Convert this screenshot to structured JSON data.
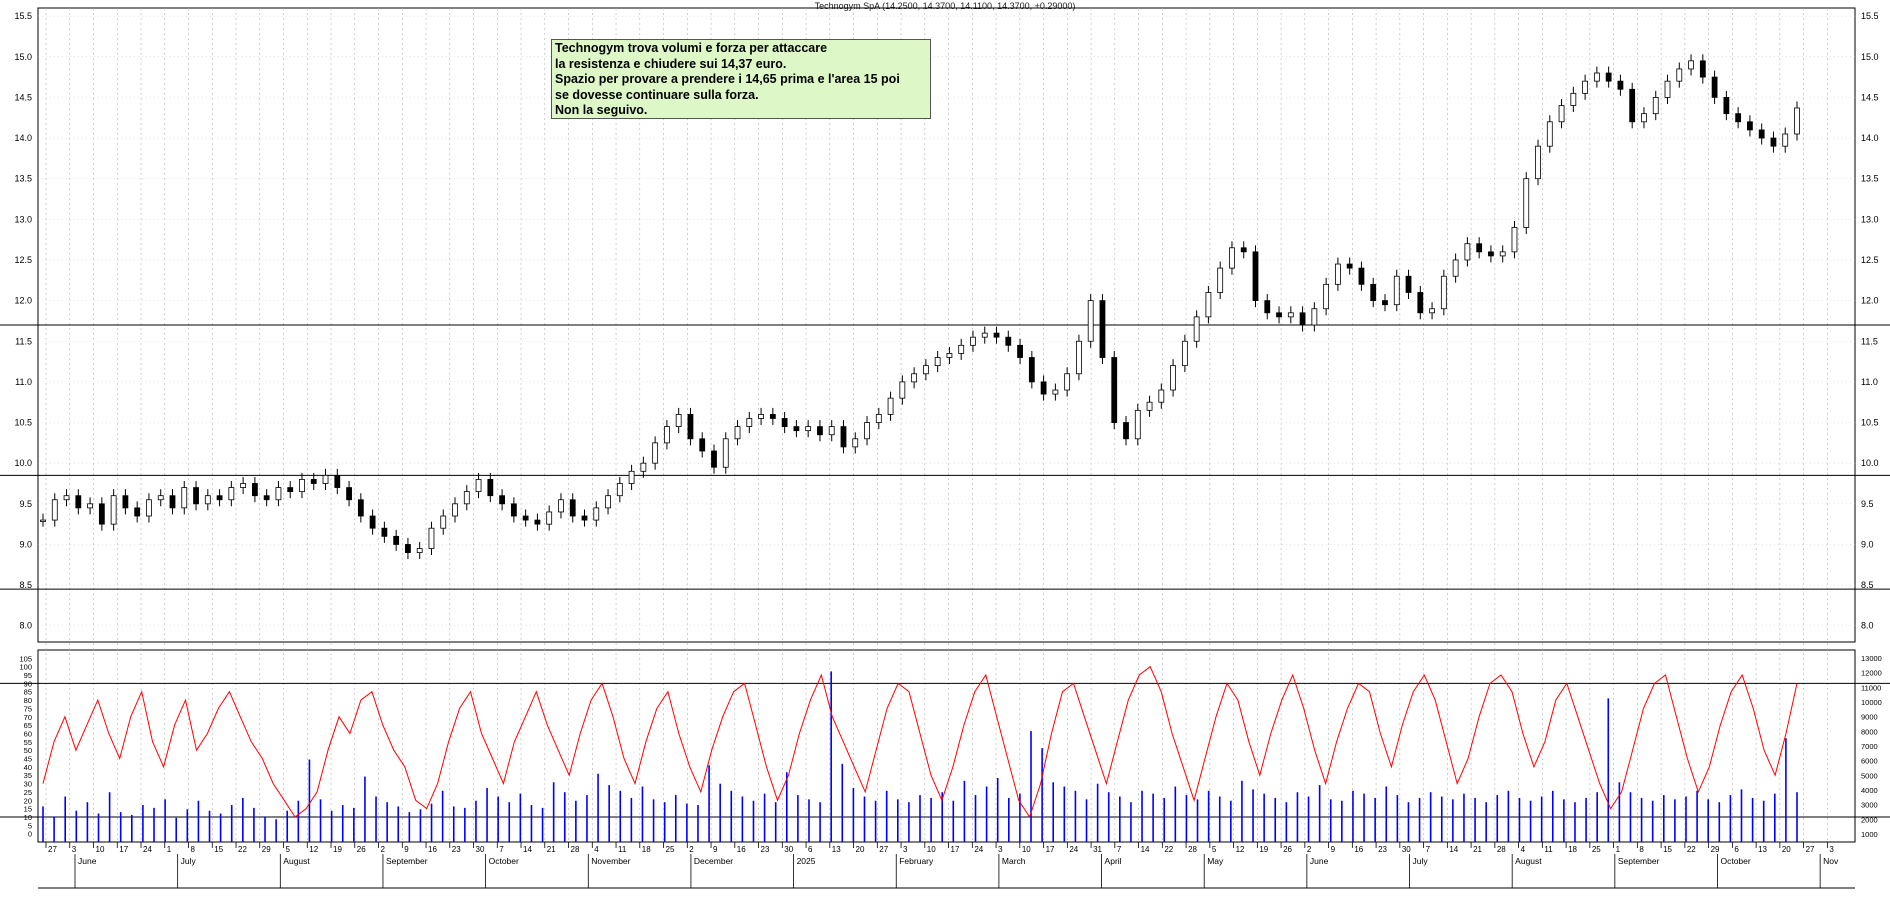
{
  "header": "Technogym SpA (14.2500, 14.3700, 14.1100, 14.3700, +0.29000)",
  "note": {
    "lines": [
      "Technogym trova volumi e forza per attaccare",
      "la resistenza e chiudere sui 14,37 euro.",
      "Spazio per provare a prendere i 14,65 prima e l'area 15 poi",
      "se dovesse continuare sulla forza.",
      "Non la seguivo."
    ]
  },
  "chart_data": [
    {
      "type": "candlestick",
      "title": "Technogym SpA (14.2500, 14.3700, 14.1100, 14.3700, +0.29000)",
      "ylim": [
        7.8,
        15.6
      ],
      "y_ticks": [
        "8.0",
        "8.5",
        "9.0",
        "9.5",
        "10.0",
        "10.5",
        "11.0",
        "11.5",
        "12.0",
        "12.5",
        "13.0",
        "13.5",
        "14.0",
        "14.5",
        "15.0",
        "15.5"
      ],
      "x_day_ticks": [
        "27",
        "3",
        "10",
        "17",
        "24",
        "1",
        "8",
        "15",
        "22",
        "29",
        "5",
        "12",
        "19",
        "26",
        "2",
        "9",
        "16",
        "23",
        "30",
        "7",
        "14",
        "21",
        "28",
        "4",
        "11",
        "18",
        "25",
        "2",
        "9",
        "16",
        "23",
        "30",
        "6",
        "13",
        "20",
        "27",
        "3",
        "10",
        "17",
        "24",
        "3",
        "10",
        "17",
        "24",
        "31",
        "7",
        "14",
        "22",
        "28",
        "5",
        "12",
        "19",
        "26",
        "2",
        "9",
        "16",
        "23",
        "30",
        "7",
        "14",
        "21",
        "28",
        "4",
        "11",
        "18",
        "25",
        "1",
        "8",
        "15",
        "22",
        "29",
        "6",
        "13",
        "20",
        "27",
        "3"
      ],
      "x_month_labels": [
        "June",
        "July",
        "August",
        "September",
        "October",
        "November",
        "December",
        "2025",
        "February",
        "March",
        "April",
        "May",
        "June",
        "July",
        "August",
        "September",
        "October",
        "Nov"
      ],
      "horizontal_levels": [
        9.85,
        8.45,
        11.7
      ],
      "last_bar": {
        "open": 14.25,
        "high": 14.37,
        "low": 14.11,
        "close": 14.37,
        "change": 0.29
      },
      "series": [
        {
          "values": [
            [
              25,
              9.3
            ],
            [
              30,
              9.55
            ],
            [
              35,
              9.6
            ],
            [
              40,
              9.45
            ],
            [
              45,
              9.5
            ],
            [
              50,
              9.25
            ],
            [
              55,
              9.6
            ],
            [
              60,
              9.45
            ],
            [
              65,
              9.35
            ],
            [
              70,
              9.55
            ],
            [
              75,
              9.6
            ],
            [
              80,
              9.45
            ],
            [
              85,
              9.7
            ],
            [
              90,
              9.5
            ],
            [
              95,
              9.6
            ],
            [
              100,
              9.55
            ],
            [
              105,
              9.7
            ],
            [
              110,
              9.75
            ],
            [
              115,
              9.6
            ],
            [
              120,
              9.55
            ],
            [
              125,
              9.7
            ],
            [
              130,
              9.65
            ],
            [
              135,
              9.8
            ],
            [
              140,
              9.75
            ],
            [
              145,
              9.85
            ],
            [
              150,
              9.7
            ],
            [
              155,
              9.55
            ],
            [
              160,
              9.35
            ],
            [
              165,
              9.2
            ],
            [
              170,
              9.1
            ],
            [
              175,
              9.0
            ],
            [
              180,
              8.9
            ],
            [
              185,
              8.95
            ],
            [
              190,
              9.2
            ],
            [
              195,
              9.35
            ],
            [
              200,
              9.5
            ],
            [
              205,
              9.65
            ],
            [
              210,
              9.8
            ],
            [
              215,
              9.6
            ],
            [
              220,
              9.5
            ],
            [
              225,
              9.35
            ],
            [
              230,
              9.3
            ],
            [
              235,
              9.25
            ],
            [
              240,
              9.4
            ],
            [
              245,
              9.55
            ],
            [
              250,
              9.35
            ],
            [
              255,
              9.3
            ],
            [
              260,
              9.45
            ],
            [
              265,
              9.6
            ],
            [
              270,
              9.75
            ],
            [
              275,
              9.9
            ],
            [
              280,
              10.0
            ],
            [
              285,
              10.25
            ],
            [
              290,
              10.45
            ],
            [
              295,
              10.6
            ],
            [
              300,
              10.3
            ],
            [
              305,
              10.15
            ],
            [
              310,
              9.95
            ],
            [
              315,
              10.3
            ],
            [
              320,
              10.45
            ],
            [
              325,
              10.55
            ],
            [
              330,
              10.6
            ],
            [
              335,
              10.55
            ],
            [
              340,
              10.45
            ],
            [
              345,
              10.4
            ],
            [
              350,
              10.45
            ],
            [
              355,
              10.35
            ],
            [
              360,
              10.45
            ],
            [
              365,
              10.2
            ],
            [
              370,
              10.3
            ],
            [
              375,
              10.5
            ],
            [
              380,
              10.6
            ],
            [
              385,
              10.8
            ],
            [
              390,
              11.0
            ],
            [
              395,
              11.1
            ],
            [
              400,
              11.2
            ],
            [
              405,
              11.3
            ],
            [
              410,
              11.35
            ],
            [
              415,
              11.45
            ],
            [
              420,
              11.55
            ],
            [
              425,
              11.6
            ],
            [
              430,
              11.55
            ],
            [
              435,
              11.45
            ],
            [
              440,
              11.3
            ],
            [
              445,
              11.0
            ],
            [
              450,
              10.85
            ],
            [
              455,
              10.9
            ],
            [
              460,
              11.1
            ],
            [
              465,
              11.5
            ],
            [
              470,
              12.0
            ],
            [
              475,
              11.3
            ],
            [
              480,
              10.5
            ],
            [
              485,
              10.3
            ],
            [
              490,
              10.65
            ],
            [
              495,
              10.75
            ],
            [
              500,
              10.9
            ],
            [
              505,
              11.2
            ],
            [
              510,
              11.5
            ],
            [
              515,
              11.8
            ],
            [
              520,
              12.1
            ],
            [
              525,
              12.4
            ],
            [
              530,
              12.65
            ],
            [
              535,
              12.6
            ],
            [
              540,
              12.0
            ],
            [
              545,
              11.85
            ],
            [
              550,
              11.8
            ],
            [
              555,
              11.85
            ],
            [
              560,
              11.7
            ],
            [
              565,
              11.9
            ],
            [
              570,
              12.2
            ],
            [
              575,
              12.45
            ],
            [
              580,
              12.4
            ],
            [
              585,
              12.2
            ],
            [
              590,
              12.0
            ],
            [
              595,
              11.95
            ],
            [
              600,
              12.3
            ],
            [
              605,
              12.1
            ],
            [
              610,
              11.85
            ],
            [
              615,
              11.9
            ],
            [
              620,
              12.3
            ],
            [
              625,
              12.5
            ],
            [
              630,
              12.7
            ],
            [
              635,
              12.6
            ],
            [
              640,
              12.55
            ],
            [
              645,
              12.6
            ],
            [
              650,
              12.9
            ],
            [
              655,
              13.5
            ],
            [
              660,
              13.9
            ],
            [
              665,
              14.2
            ],
            [
              670,
              14.4
            ],
            [
              675,
              14.55
            ],
            [
              680,
              14.7
            ],
            [
              685,
              14.8
            ],
            [
              690,
              14.7
            ],
            [
              695,
              14.6
            ],
            [
              700,
              14.2
            ],
            [
              705,
              14.3
            ],
            [
              710,
              14.5
            ],
            [
              715,
              14.7
            ],
            [
              720,
              14.85
            ],
            [
              725,
              14.95
            ],
            [
              730,
              14.75
            ],
            [
              735,
              14.5
            ],
            [
              740,
              14.3
            ],
            [
              745,
              14.2
            ],
            [
              750,
              14.1
            ],
            [
              755,
              14.0
            ],
            [
              760,
              13.9
            ],
            [
              765,
              14.05
            ],
            [
              770,
              14.37
            ]
          ]
        }
      ]
    },
    {
      "type": "line",
      "ylim": [
        -5,
        110
      ],
      "y_ticks": [
        "0",
        "5",
        "10",
        "15",
        "20",
        "25",
        "30",
        "35",
        "40",
        "45",
        "50",
        "55",
        "60",
        "65",
        "70",
        "75",
        "80",
        "85",
        "90",
        "95",
        "100",
        "105"
      ],
      "y2_ticks": [
        "1000",
        "2000",
        "3000",
        "4000",
        "5000",
        "6000",
        "7000",
        "8000",
        "9000",
        "10000",
        "11000",
        "12000",
        "13000"
      ],
      "horizontal_levels": [
        90,
        10
      ],
      "series": [
        {
          "name": "",
          "color": "#ff0000",
          "values": [
            30,
            55,
            70,
            50,
            65,
            80,
            60,
            45,
            70,
            85,
            55,
            40,
            65,
            80,
            50,
            60,
            75,
            85,
            70,
            55,
            45,
            30,
            20,
            10,
            15,
            25,
            50,
            70,
            60,
            80,
            85,
            65,
            50,
            40,
            20,
            15,
            30,
            55,
            75,
            85,
            60,
            45,
            30,
            55,
            70,
            85,
            65,
            50,
            35,
            60,
            80,
            90,
            70,
            45,
            30,
            55,
            75,
            85,
            60,
            40,
            25,
            50,
            70,
            85,
            90,
            65,
            40,
            20,
            35,
            60,
            80,
            95,
            70,
            55,
            40,
            25,
            50,
            75,
            90,
            85,
            60,
            35,
            20,
            40,
            65,
            85,
            95,
            70,
            45,
            20,
            10,
            30,
            60,
            85,
            90,
            70,
            50,
            30,
            55,
            80,
            95,
            100,
            85,
            60,
            40,
            20,
            45,
            70,
            90,
            80,
            55,
            35,
            60,
            80,
            95,
            75,
            50,
            30,
            55,
            75,
            90,
            85,
            60,
            40,
            65,
            85,
            95,
            80,
            55,
            30,
            45,
            70,
            90,
            95,
            85,
            60,
            40,
            55,
            80,
            90,
            70,
            50,
            30,
            15,
            25,
            50,
            75,
            90,
            95,
            70,
            45,
            25,
            40,
            65,
            85,
            95,
            75,
            50,
            35,
            60,
            90
          ]
        },
        {
          "name": "",
          "type": "bar",
          "color": "#0000ff",
          "values": [
            2500,
            1800,
            3200,
            2200,
            2800,
            2000,
            3500,
            2100,
            1900,
            2600,
            2400,
            3000,
            1700,
            2300,
            2900,
            2200,
            2000,
            2600,
            3100,
            2400,
            1800,
            1600,
            2200,
            2900,
            5800,
            3000,
            2200,
            2600,
            2400,
            4600,
            3200,
            2800,
            2500,
            2100,
            2300,
            2700,
            3600,
            2500,
            2400,
            2900,
            3800,
            3200,
            2800,
            3400,
            2600,
            2400,
            4200,
            3500,
            2900,
            3300,
            4800,
            4000,
            3600,
            3100,
            3900,
            3000,
            2800,
            3300,
            2700,
            2600,
            5400,
            4100,
            3600,
            3200,
            2900,
            3400,
            2800,
            4900,
            3300,
            3000,
            2800,
            12000,
            5500,
            3800,
            3200,
            2900,
            3600,
            3000,
            2800,
            3300,
            3100,
            3500,
            2900,
            4300,
            3300,
            3900,
            4500,
            3100,
            3400,
            7800,
            6600,
            4200,
            3900,
            3600,
            3000,
            4100,
            3500,
            3200,
            2800,
            3600,
            3400,
            3100,
            3900,
            3300,
            3000,
            3600,
            3200,
            2900,
            4300,
            3700,
            3400,
            3100,
            2800,
            3500,
            3200,
            4000,
            3000,
            2900,
            3600,
            3400,
            3100,
            3900,
            3300,
            2800,
            3100,
            3500,
            3200,
            3000,
            3400,
            3100,
            2800,
            3300,
            3600,
            3100,
            2900,
            3200,
            3600,
            3000,
            2800,
            3100,
            3500,
            10100,
            4200,
            3500,
            3100,
            2900,
            3300,
            3000,
            3200,
            3600,
            3000,
            2800,
            3300,
            3700,
            3100,
            2900,
            3400,
            7300,
            3500
          ]
        }
      ]
    }
  ]
}
